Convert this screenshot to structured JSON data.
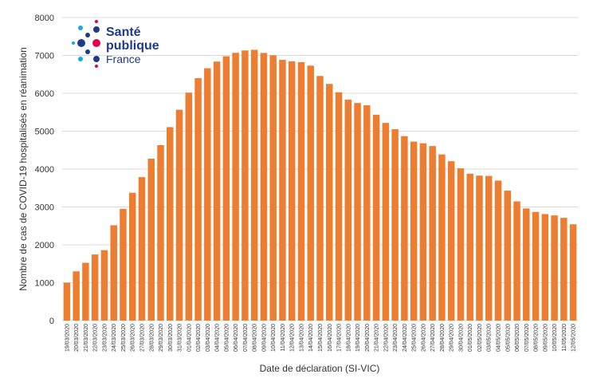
{
  "chart_data": {
    "type": "bar",
    "y_label": "Nombre de cas de COVID-19 hospitalisés en réanimation",
    "x_label": "Date de déclaration (SI-VIC)",
    "logo": {
      "line1": "Santé",
      "line2": "publique",
      "line3": "France"
    },
    "categories": [
      "19/03/2020",
      "20/03/2020",
      "21/03/2020",
      "22/03/2020",
      "23/03/2020",
      "24/03/2020",
      "25/03/2020",
      "26/03/2020",
      "27/03/2020",
      "28/03/2020",
      "29/03/2020",
      "30/03/2020",
      "31/03/2020",
      "01/04/2020",
      "02/04/2020",
      "03/04/2020",
      "04/04/2020",
      "05/04/2020",
      "06/04/2020",
      "07/04/2020",
      "08/04/2020",
      "09/04/2020",
      "10/04/2020",
      "11/04/2020",
      "12/04/2020",
      "13/04/2020",
      "14/04/2020",
      "15/04/2020",
      "16/04/2020",
      "17/04/2020",
      "18/04/2020",
      "19/04/2020",
      "20/04/2020",
      "21/04/2020",
      "22/04/2020",
      "23/04/2020",
      "24/04/2020",
      "25/04/2020",
      "26/04/2020",
      "27/04/2020",
      "28/04/2020",
      "29/04/2020",
      "30/04/2020",
      "01/05/2020",
      "02/05/2020",
      "03/05/2020",
      "04/05/2020",
      "05/05/2020",
      "06/05/2020",
      "07/05/2020",
      "08/05/2020",
      "09/05/2020",
      "10/05/2020",
      "11/05/2020",
      "12/05/2020"
    ],
    "values": [
      1000,
      1300,
      1525,
      1745,
      1860,
      2516,
      2950,
      3375,
      3787,
      4273,
      4632,
      5107,
      5565,
      6017,
      6399,
      6662,
      6838,
      6978,
      7069,
      7131,
      7148,
      7066,
      7004,
      6883,
      6845,
      6821,
      6730,
      6457,
      6248,
      6027,
      5833,
      5744,
      5683,
      5433,
      5218,
      5053,
      4870,
      4725,
      4682,
      4608,
      4387,
      4207,
      4019,
      3878,
      3827,
      3819,
      3696,
      3430,
      3147,
      2961,
      2868,
      2812,
      2776,
      2712,
      2542
    ],
    "color": "#ed7d31",
    "ylim": [
      0,
      8000
    ],
    "yticks": [
      0,
      1000,
      2000,
      3000,
      4000,
      5000,
      6000,
      7000,
      8000
    ],
    "grid": true
  }
}
